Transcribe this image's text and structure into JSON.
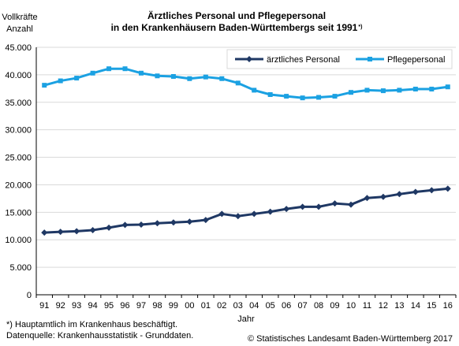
{
  "chart_data": {
    "type": "line",
    "title_line1": "Ärztliches Personal und Pflegepersonal",
    "title_line2": "in den Krankenhäusern Baden-Württembergs seit 1991",
    "title_mark": "*)",
    "ylabel_line1": "Vollkräfte",
    "ylabel_line2": "Anzahl",
    "xlabel": "Jahr",
    "ylim": [
      0,
      45000
    ],
    "yticks": [
      0,
      5000,
      10000,
      15000,
      20000,
      25000,
      30000,
      35000,
      40000,
      45000
    ],
    "ytick_labels": [
      "0",
      "5.000",
      "10.000",
      "15.000",
      "20.000",
      "25.000",
      "30.000",
      "35.000",
      "40.000",
      "45.000"
    ],
    "categories": [
      "91",
      "92",
      "93",
      "94",
      "95",
      "96",
      "97",
      "98",
      "99",
      "00",
      "01",
      "02",
      "03",
      "04",
      "05",
      "06",
      "07",
      "08",
      "09",
      "10",
      "11",
      "12",
      "13",
      "14",
      "15",
      "16"
    ],
    "grid": true,
    "legend_position": "top-right",
    "series": [
      {
        "name": "ärztliches Personal",
        "color": "#1f3864",
        "marker": "diamond",
        "values": [
          11300,
          11450,
          11550,
          11750,
          12200,
          12700,
          12750,
          13000,
          13150,
          13300,
          13600,
          14700,
          14300,
          14700,
          15100,
          15600,
          16000,
          16000,
          16600,
          16400,
          17600,
          17800,
          18300,
          18700,
          19000,
          19300
        ]
      },
      {
        "name": "Pflegepersonal",
        "color": "#1ba1e2",
        "marker": "square",
        "values": [
          38100,
          38900,
          39400,
          40300,
          41100,
          41100,
          40300,
          39800,
          39700,
          39300,
          39600,
          39300,
          38500,
          37200,
          36400,
          36100,
          35800,
          35900,
          36100,
          36800,
          37200,
          37100,
          37200,
          37400,
          37400,
          37800
        ]
      }
    ]
  },
  "footnote": "*) Hauptamtlich im Krankenhaus beschäftigt.",
  "source": "Datenquelle: Krankenhausstatistik - Grunddaten.",
  "copyright": "© Statistisches Landesamt Baden-Württemberg 2017"
}
